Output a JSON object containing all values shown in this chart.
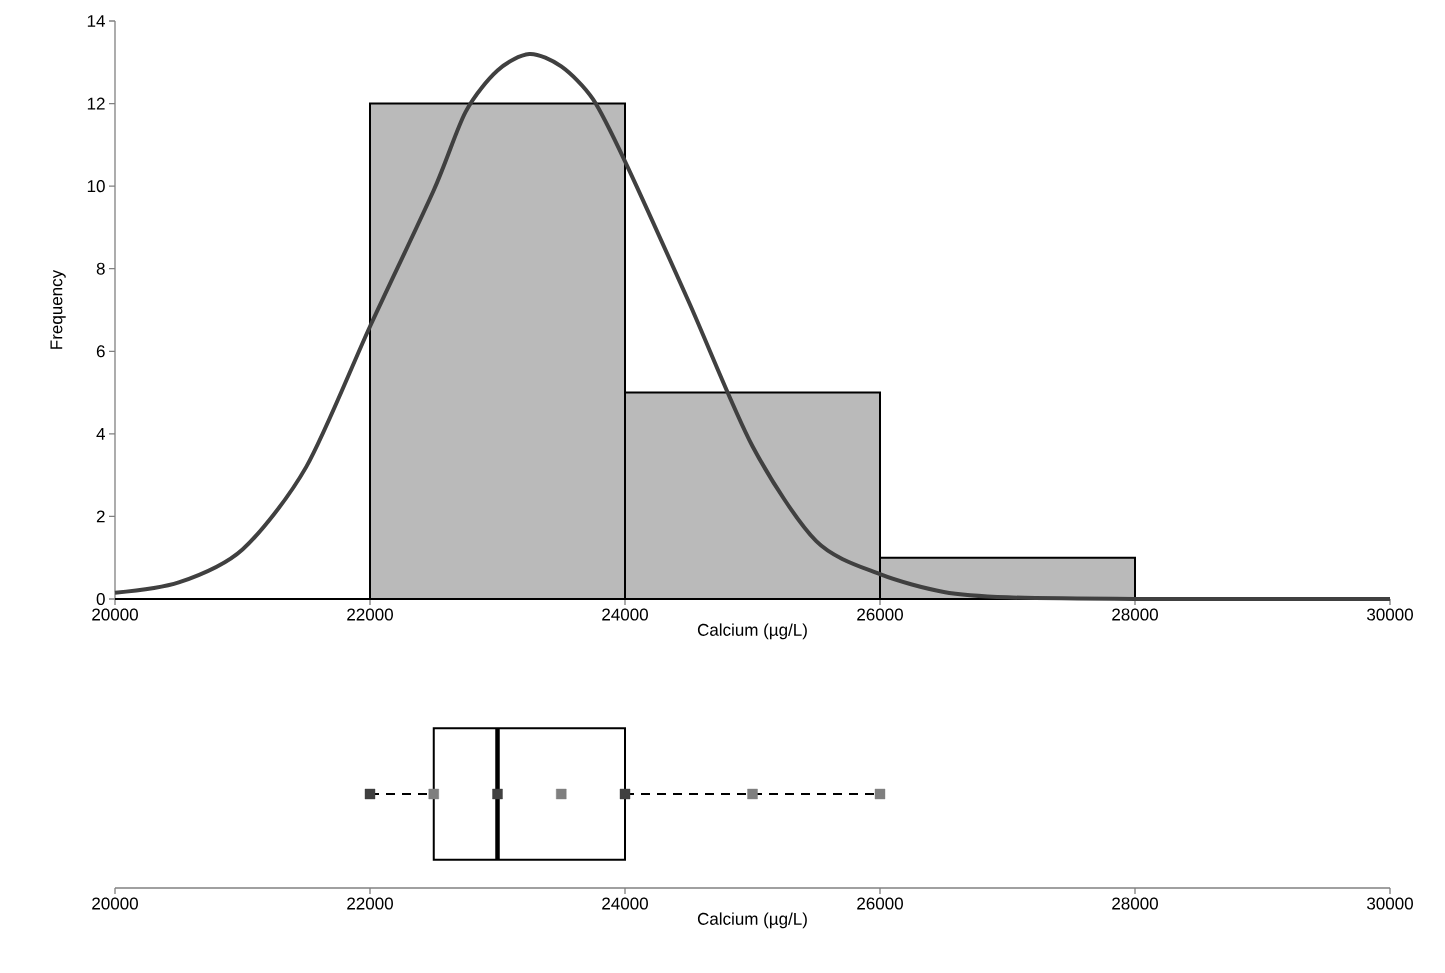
{
  "chart_data": [
    {
      "type": "histogram",
      "bins": [
        20000,
        22000,
        24000,
        26000,
        28000,
        30000
      ],
      "values": [
        0,
        12,
        5,
        1,
        0
      ],
      "color": "#bababa",
      "series": [
        {
          "type": "line",
          "color": "#404040",
          "x": [
            20000,
            20500,
            21000,
            21500,
            22000,
            22500,
            22750,
            23000,
            23250,
            23500,
            23750,
            24000,
            24500,
            25000,
            25500,
            26000,
            26500,
            27000,
            28000,
            29000,
            30000
          ],
          "values": [
            0.15,
            0.4,
            1.2,
            3.2,
            6.6,
            9.9,
            11.8,
            12.8,
            13.2,
            12.9,
            12.1,
            10.6,
            7.2,
            3.7,
            1.4,
            0.6,
            0.17,
            0.04,
            0,
            0,
            0
          ]
        }
      ],
      "xlabel": "Calcium (µg/L)",
      "ylabel": "Frequency",
      "xlim": [
        20000,
        30000
      ],
      "ylim": [
        0,
        14
      ],
      "xticks": [
        20000,
        22000,
        24000,
        26000,
        28000,
        30000
      ],
      "yticks": [
        0,
        2,
        4,
        6,
        8,
        10,
        12,
        14
      ]
    },
    {
      "type": "box",
      "orientation": "horizontal",
      "categories": [
        null
      ],
      "line_style": "dashed",
      "marker": "square",
      "boxes": [
        {
          "low": 22000,
          "q1": 22500,
          "median": 23000,
          "q3": 24000,
          "high": 26000
        }
      ],
      "series": [
        {
          "type": "scatter",
          "x": [
            null,
            null,
            null,
            null,
            null,
            null,
            null
          ],
          "values": [
            22000,
            22500,
            23000,
            23500,
            24000,
            25000,
            26000
          ],
          "colors": [
            "#404040",
            "#7f7f7f",
            "#404040",
            "#7f7f7f",
            "#404040",
            "#7f7f7f",
            "#7f7f7f"
          ]
        }
      ],
      "xlabel": "Calcium (µg/L)",
      "xlim": [
        20000,
        30000
      ],
      "xticks": [
        20000,
        22000,
        24000,
        26000,
        28000,
        30000
      ],
      "tick_labels": "x"
    }
  ]
}
